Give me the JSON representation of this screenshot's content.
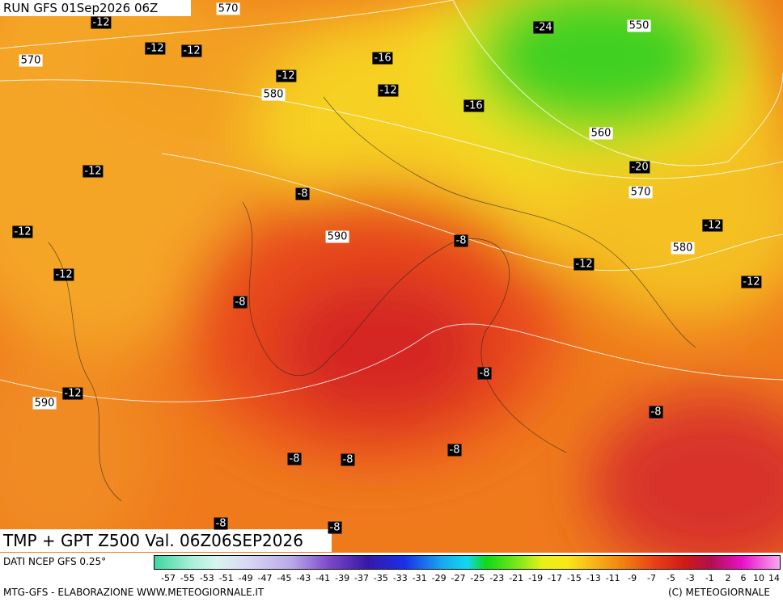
{
  "header": {
    "run": "RUN GFS 01Sep2026 06Z",
    "title": "TMP + GPT Z500 Val. 06Z06SEP2026"
  },
  "map": {
    "temperature_labels": [
      -12,
      -12,
      -12,
      -16,
      -12,
      -12,
      -24,
      -16,
      -12,
      -8,
      -12,
      -20,
      -8,
      -12,
      -12,
      -12,
      -12,
      -8,
      -8,
      -12,
      -8,
      -8,
      -8,
      -8,
      -8,
      -8
    ],
    "height_labels": [
      570,
      550,
      570,
      580,
      560,
      570,
      590,
      580,
      590
    ]
  },
  "footer": {
    "source": "DATI NCEP GFS 0.25°",
    "credit": "MTG-GFS - ELABORAZIONE WWW.METEOGIORNALE.IT",
    "copyright": "(C) METEOGIORNALE"
  },
  "colorbar": {
    "ticks": [
      -57,
      -55,
      -53,
      -51,
      -49,
      -47,
      -45,
      -43,
      -41,
      -39,
      -37,
      -35,
      -33,
      -31,
      -29,
      -27,
      -25,
      -23,
      -21,
      -19,
      -17,
      -15,
      -13,
      -11,
      -9,
      -7,
      -5,
      -3,
      -1,
      2,
      6,
      10,
      14
    ]
  }
}
